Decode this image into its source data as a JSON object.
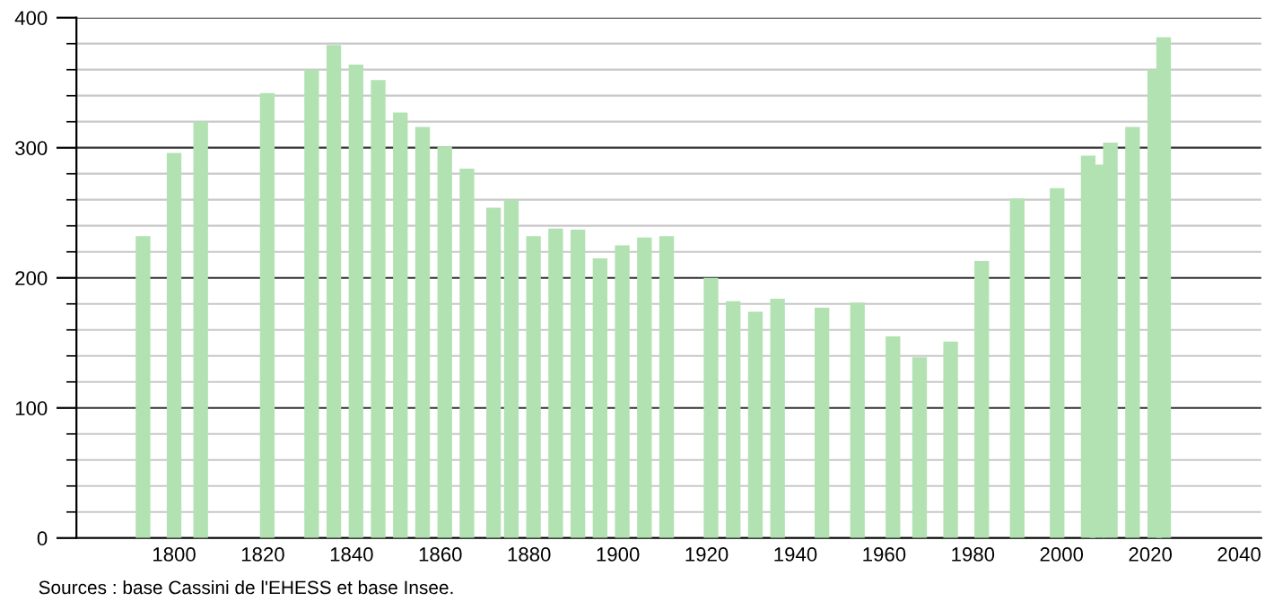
{
  "chart_data": {
    "type": "bar",
    "x": [
      1793,
      1800,
      1806,
      1821,
      1831,
      1836,
      1841,
      1846,
      1851,
      1856,
      1861,
      1866,
      1872,
      1876,
      1881,
      1886,
      1891,
      1896,
      1901,
      1906,
      1911,
      1921,
      1926,
      1931,
      1936,
      1946,
      1954,
      1962,
      1968,
      1975,
      1982,
      1990,
      1999,
      2006,
      2008,
      2011,
      2016,
      2021,
      2023
    ],
    "values": [
      232,
      296,
      320,
      342,
      360,
      379,
      364,
      352,
      327,
      316,
      301,
      284,
      254,
      260,
      232,
      238,
      237,
      215,
      225,
      231,
      232,
      200,
      182,
      174,
      184,
      177,
      181,
      155,
      139,
      151,
      213,
      261,
      269,
      294,
      287,
      304,
      316,
      360,
      385
    ],
    "color": "#b2e2b2",
    "xlim": [
      1778,
      2045
    ],
    "xticks": [
      1800,
      1820,
      1840,
      1860,
      1880,
      1900,
      1920,
      1940,
      1960,
      1980,
      2000,
      2020,
      2040
    ],
    "ylim": [
      0,
      400
    ],
    "yticks": [
      0,
      100,
      200,
      300,
      400
    ],
    "grid": "y",
    "annotations": [
      "Sources : base Cassini de l'EHESS et base Insee."
    ]
  }
}
